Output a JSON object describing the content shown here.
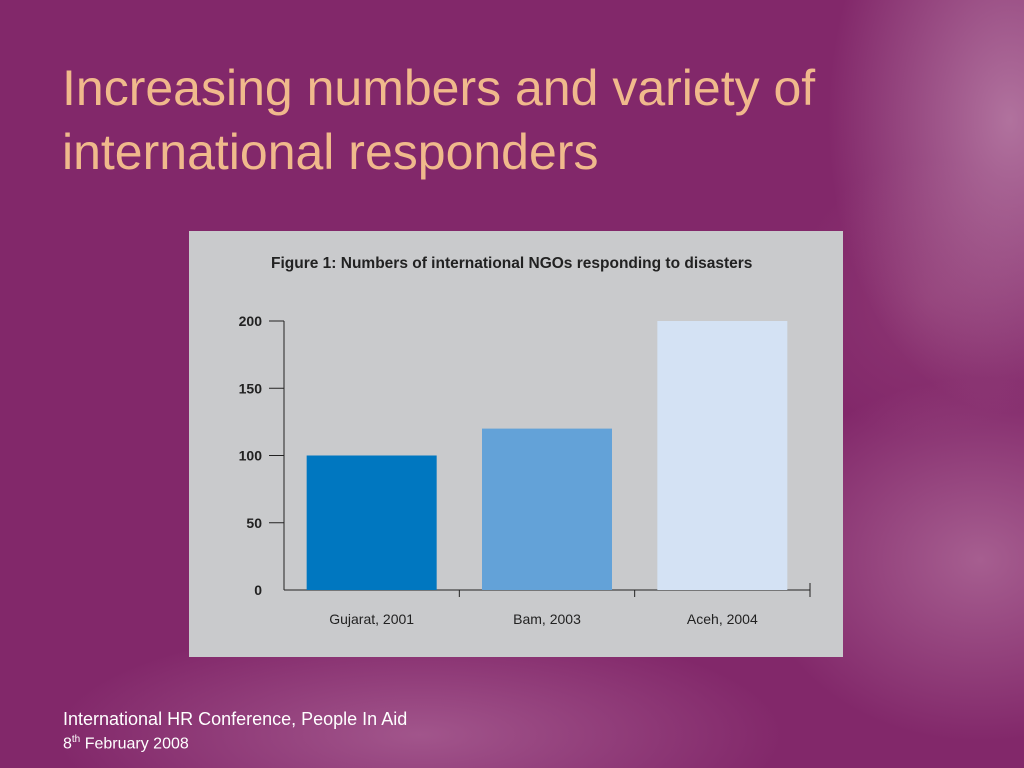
{
  "slide": {
    "title": "Increasing numbers and variety of international responders",
    "footer": {
      "line1": "International HR Conference, People In Aid",
      "date_day": "8",
      "date_suffix": "th",
      "date_rest": " February 2008"
    }
  },
  "chart_data": {
    "type": "bar",
    "title": "Figure 1: Numbers of international NGOs responding to disasters",
    "categories": [
      "Gujarat, 2001",
      "Bam, 2003",
      "Aceh, 2004"
    ],
    "values": [
      100,
      120,
      200
    ],
    "colors": [
      "#0077c0",
      "#63a2d8",
      "#d4e2f4"
    ],
    "ylim": [
      0,
      200
    ],
    "yticks": [
      0,
      50,
      100,
      150,
      200
    ],
    "xlabel": "",
    "ylabel": "",
    "grid": false
  }
}
